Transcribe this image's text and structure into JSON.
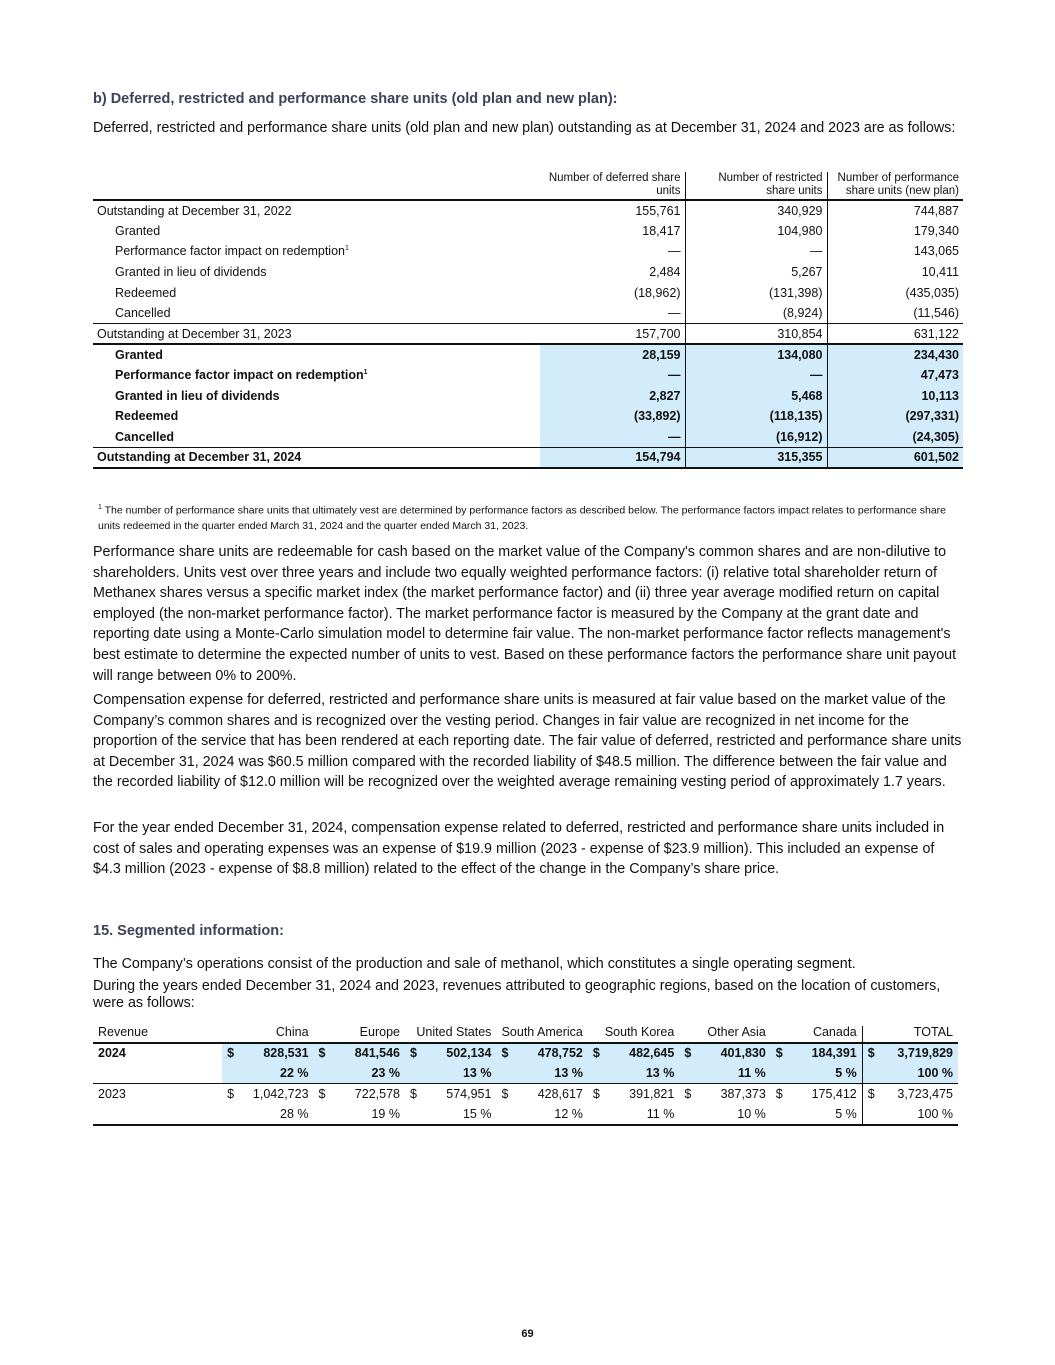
{
  "section_b": {
    "heading": "b) Deferred, restricted and performance share units (old plan and new plan):",
    "intro": "Deferred, restricted and performance share units (old plan and new plan) outstanding as at December 31, 2024 and 2023 are as follows:"
  },
  "units_table": {
    "headers": [
      "Number of deferred share units",
      "Number of restricted share units",
      "Number of performance share units (new plan)"
    ],
    "rows": [
      {
        "label": "Outstanding at December 31, 2022",
        "values": [
          "155,761",
          "340,929",
          "744,887"
        ]
      },
      {
        "label": "Granted",
        "values": [
          "18,417",
          "104,980",
          "179,340"
        ]
      },
      {
        "label": "Performance factor impact on redemption",
        "sup": "1",
        "values": [
          "—",
          "—",
          "143,065"
        ]
      },
      {
        "label": "Granted in lieu of dividends",
        "values": [
          "2,484",
          "5,267",
          "10,411"
        ]
      },
      {
        "label": "Redeemed",
        "values": [
          "(18,962)",
          "(131,398)",
          "(435,035)"
        ]
      },
      {
        "label": "Cancelled",
        "values": [
          "—",
          "(8,924)",
          "(11,546)"
        ]
      },
      {
        "label": "Outstanding at December 31, 2023",
        "values": [
          "157,700",
          "310,854",
          "631,122"
        ]
      },
      {
        "label": "Granted",
        "values": [
          "28,159",
          "134,080",
          "234,430"
        ]
      },
      {
        "label": "Performance factor impact on redemption",
        "sup": "1",
        "values": [
          "—",
          "—",
          "47,473"
        ]
      },
      {
        "label": "Granted in lieu of dividends",
        "values": [
          "2,827",
          "5,468",
          "10,113"
        ]
      },
      {
        "label": "Redeemed",
        "values": [
          "(33,892)",
          "(118,135)",
          "(297,331)"
        ]
      },
      {
        "label": "Cancelled",
        "values": [
          "—",
          "(16,912)",
          "(24,305)"
        ]
      },
      {
        "label": "Outstanding at December 31, 2024",
        "values": [
          "154,794",
          "315,355",
          "601,502"
        ]
      }
    ]
  },
  "footnote": {
    "mark": "1",
    "text": "The number of performance share units that ultimately vest are determined by performance factors as described below. The performance factors impact relates to performance share units redeemed in the quarter ended March 31, 2024 and the quarter ended March 31, 2023."
  },
  "paragraphs": [
    "Performance share units are redeemable for cash based on the market value of the Company's common shares and are non-dilutive to shareholders. Units vest over three years and include two equally weighted performance factors: (i) relative total shareholder return of Methanex shares versus a specific market index (the market performance factor) and (ii) three year average modified return on capital employed (the non-market performance factor). The market performance factor is measured by the Company at the grant date and reporting date using a Monte-Carlo simulation model to determine fair value. The non-market performance factor reflects management's best estimate to determine the expected number of units to vest. Based on these performance factors the performance share unit payout will range between 0% to 200%.",
    "Compensation expense for deferred, restricted and performance share units is measured at fair value based on the market value of the Company’s common shares and is recognized over the vesting period. Changes in fair value are recognized in net income for the proportion of the service that has been rendered at each reporting date. The fair value of deferred, restricted and performance share units at December 31, 2024 was $60.5 million compared with the recorded liability of $48.5 million. The difference between the fair value and the recorded liability of $12.0 million will be recognized over the weighted average remaining vesting period of approximately 1.7 years.",
    "For the year ended December 31, 2024, compensation expense related to deferred, restricted and performance share units included in cost of sales and operating expenses was an expense of $19.9 million (2023 - expense of $23.9 million). This included an expense of $4.3 million (2023 - expense of $8.8 million) related to the effect of the change in the Company’s share price."
  ],
  "section_15": {
    "heading": "15. Segmented information:",
    "p1": "The Company’s operations consist of the production and sale of methanol, which constitutes a single operating segment.",
    "p2": "During the years ended December 31, 2024 and 2023, revenues attributed to geographic regions, based on the location of customers, were as follows:"
  },
  "revenue_table": {
    "label_header": "Revenue",
    "headers": [
      "China",
      "Europe",
      "United States",
      "South America",
      "South Korea",
      "Other Asia",
      "Canada",
      "TOTAL"
    ],
    "currency": "$",
    "rows": [
      {
        "year": "2024",
        "values": [
          "828,531",
          "841,546",
          "502,134",
          "478,752",
          "482,645",
          "401,830",
          "184,391",
          "3,719,829"
        ],
        "pct": [
          "22 %",
          "23 %",
          "13 %",
          "13 %",
          "13 %",
          "11 %",
          "5 %",
          "100 %"
        ]
      },
      {
        "year": "2023",
        "values": [
          "1,042,723",
          "722,578",
          "574,951",
          "428,617",
          "391,821",
          "387,373",
          "175,412",
          "3,723,475"
        ],
        "pct": [
          "28 %",
          "19 %",
          "15 %",
          "12 %",
          "11 %",
          "10 %",
          "5 %",
          "100 %"
        ]
      }
    ]
  },
  "page_number": "69"
}
